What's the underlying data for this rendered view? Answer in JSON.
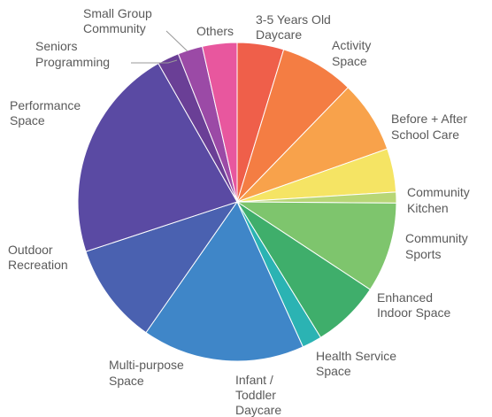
{
  "chart_data": {
    "type": "pie",
    "title": "",
    "legend": "none",
    "labels_outside": true,
    "slices": [
      {
        "label": "3-5 Years Old Daycare",
        "value": 4.7,
        "color": "#ef5f4a"
      },
      {
        "label": "Activity Space",
        "value": 7.5,
        "color": "#f47d43"
      },
      {
        "label": "Before + After School Care",
        "value": 7.3,
        "color": "#f8a24b"
      },
      {
        "label": "Community Kitchen",
        "value": 4.4,
        "color": "#f5e464"
      },
      {
        "label": "Community Sports",
        "value": 1.1,
        "color": "#b7d676"
      },
      {
        "label": "Enhanced Indoor Space",
        "value": 9.1,
        "color": "#7ec56d"
      },
      {
        "label": "Health Service Space",
        "value": 6.9,
        "color": "#3fae6b"
      },
      {
        "label": "Infant / Toddler Daycare",
        "value": 2.0,
        "color": "#2bb3b3"
      },
      {
        "label": "Multi-purpose Space",
        "value": 16.4,
        "color": "#3f86c8"
      },
      {
        "label": "Outdoor Recreation",
        "value": 10.2,
        "color": "#4a61b0"
      },
      {
        "label": "Performance Space",
        "value": 21.7,
        "color": "#5a4aa3"
      },
      {
        "label": "Seniors Programming",
        "value": 2.2,
        "color": "#6a3f96"
      },
      {
        "label": "Small Group Community",
        "value": 2.5,
        "color": "#9b4aa6"
      },
      {
        "label": "Others",
        "value": 3.5,
        "color": "#e8579e"
      }
    ]
  }
}
